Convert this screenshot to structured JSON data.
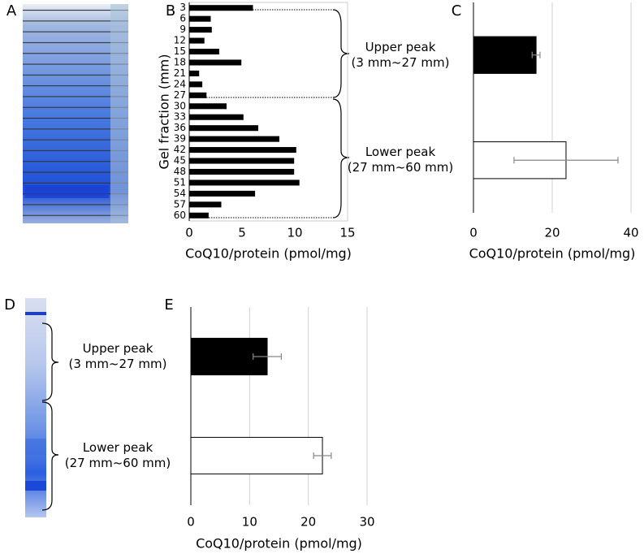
{
  "images": [
    {
      "label": "A"
    },
    {
      "label": "D"
    }
  ],
  "chart_data": [
    {
      "panel": "B",
      "type": "bar",
      "orientation": "horizontal",
      "categories": [
        "3",
        "6",
        "9",
        "12",
        "15",
        "18",
        "21",
        "24",
        "27",
        "30",
        "33",
        "36",
        "39",
        "42",
        "45",
        "48",
        "51",
        "54",
        "57",
        "60"
      ],
      "values": [
        6.0,
        2.0,
        2.1,
        1.4,
        2.8,
        4.9,
        0.9,
        1.2,
        1.6,
        3.5,
        5.1,
        6.5,
        8.5,
        10.1,
        9.9,
        9.9,
        10.4,
        6.2,
        3.0,
        1.8
      ],
      "color": "#000000",
      "xlim": [
        0,
        15
      ],
      "xticks": [
        0,
        5,
        10,
        15
      ],
      "grid": false,
      "xlabel": "CoQ10/protein (pmol/mg)",
      "ylabel": "Gel fraction (mm)"
    },
    {
      "panel": "C",
      "type": "bar",
      "orientation": "horizontal",
      "categories": [
        "Upper peak\n(3 mm~27 mm)",
        "Lower peak\n(27 mm~60 mm)"
      ],
      "values": [
        15.9,
        23.5
      ],
      "errors": [
        1.0,
        13.2
      ],
      "colors": [
        "#000000",
        "#ffffff"
      ],
      "xlim": [
        0,
        40
      ],
      "xticks": [
        0,
        20,
        40
      ],
      "grid": true,
      "xlabel": "CoQ10/protein (pmol/mg)"
    },
    {
      "panel": "E",
      "type": "bar",
      "orientation": "horizontal",
      "categories": [
        "Upper peak\n(3 mm~27 mm)",
        "Lower peak\n(27 mm~60 mm)"
      ],
      "values": [
        13.0,
        22.4
      ],
      "errors": [
        2.4,
        1.5
      ],
      "colors": [
        "#000000",
        "#ffffff"
      ],
      "xlim": [
        0,
        30
      ],
      "xticks": [
        0,
        10,
        20,
        30
      ],
      "grid": true,
      "xlabel": "CoQ10/protein (pmol/mg)"
    }
  ]
}
